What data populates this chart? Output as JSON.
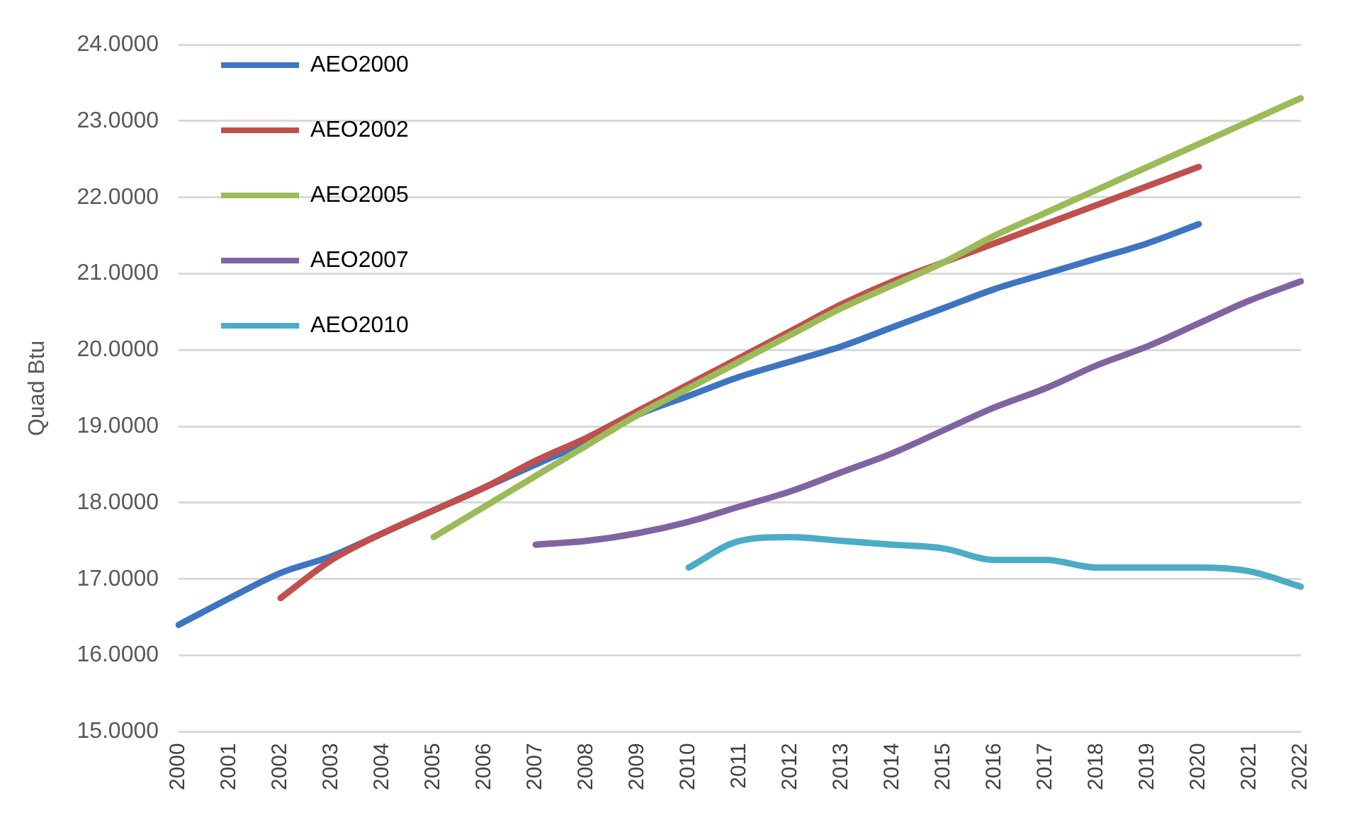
{
  "chart_data": {
    "type": "line",
    "ylabel": "Quad Btu",
    "categories": [
      "2000",
      "2001",
      "2002",
      "2003",
      "2004",
      "2005",
      "2006",
      "2007",
      "2008",
      "2009",
      "2010",
      "2011",
      "2012",
      "2013",
      "2014",
      "2015",
      "2016",
      "2017",
      "2018",
      "2019",
      "2020",
      "2021",
      "2022"
    ],
    "series": [
      {
        "name": "AEO2000",
        "color": "#3e75c0",
        "values": [
          16.4,
          16.75,
          17.08,
          17.3,
          17.6,
          17.9,
          18.2,
          18.5,
          18.8,
          19.15,
          19.4,
          19.65,
          19.85,
          20.05,
          20.3,
          20.55,
          20.8,
          21.0,
          21.2,
          21.4,
          21.65,
          null,
          null
        ]
      },
      {
        "name": "AEO2002",
        "color": "#c0504d",
        "values": [
          null,
          null,
          16.75,
          17.25,
          17.6,
          17.9,
          18.2,
          18.55,
          18.85,
          19.2,
          19.55,
          19.9,
          20.25,
          20.6,
          20.9,
          21.15,
          21.4,
          21.65,
          21.9,
          22.15,
          22.4,
          null,
          null
        ]
      },
      {
        "name": "AEO2005",
        "color": "#9bbb59",
        "values": [
          null,
          null,
          null,
          null,
          null,
          17.55,
          17.95,
          18.35,
          18.75,
          19.15,
          19.5,
          19.85,
          20.2,
          20.55,
          20.85,
          21.15,
          21.5,
          21.8,
          22.1,
          22.4,
          22.7,
          23.0,
          23.3
        ]
      },
      {
        "name": "AEO2007",
        "color": "#8064a2",
        "values": [
          null,
          null,
          null,
          null,
          null,
          null,
          null,
          17.45,
          17.5,
          17.6,
          17.75,
          17.95,
          18.15,
          18.4,
          18.65,
          18.95,
          19.25,
          19.5,
          19.8,
          20.05,
          20.35,
          20.65,
          20.9
        ]
      },
      {
        "name": "AEO2010",
        "color": "#4bacc6",
        "values": [
          null,
          null,
          null,
          null,
          null,
          null,
          null,
          null,
          null,
          null,
          17.15,
          17.5,
          17.55,
          17.5,
          17.45,
          17.4,
          17.25,
          17.25,
          17.15,
          17.15,
          17.15,
          17.1,
          16.9
        ]
      }
    ],
    "ylim": [
      15,
      24
    ],
    "yticks": [
      {
        "value": 15,
        "label": "15.0000"
      },
      {
        "value": 16,
        "label": "16.0000"
      },
      {
        "value": 17,
        "label": "17.0000"
      },
      {
        "value": 18,
        "label": "18.0000"
      },
      {
        "value": 19,
        "label": "19.0000"
      },
      {
        "value": 20,
        "label": "20.0000"
      },
      {
        "value": 21,
        "label": "21.0000"
      },
      {
        "value": 22,
        "label": "22.0000"
      },
      {
        "value": 23,
        "label": "23.0000"
      },
      {
        "value": 24,
        "label": "24.0000"
      }
    ],
    "grid": "y",
    "legend": "top left",
    "marker": "none",
    "line_style": "solid"
  }
}
